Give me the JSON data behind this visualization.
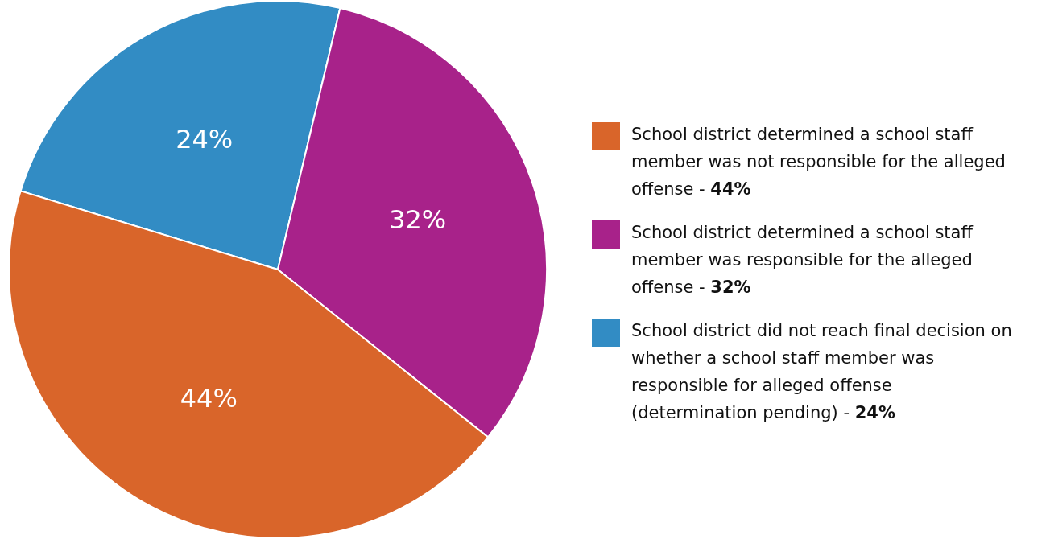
{
  "chart_data": {
    "type": "pie",
    "categories": [
      "School district determined a school staff member was not responsible for the alleged offense -",
      "School district determined a school staff member was responsible for the alleged offense -",
      "School district did not reach final decision on whether a school staff member was responsible for alleged offense (determination pending) -"
    ],
    "values": [
      44,
      32,
      24
    ],
    "value_labels": [
      "44%",
      "32%",
      "24%"
    ],
    "colors": [
      "#d9652a",
      "#a8228a",
      "#328cc4"
    ],
    "legend": "right"
  }
}
